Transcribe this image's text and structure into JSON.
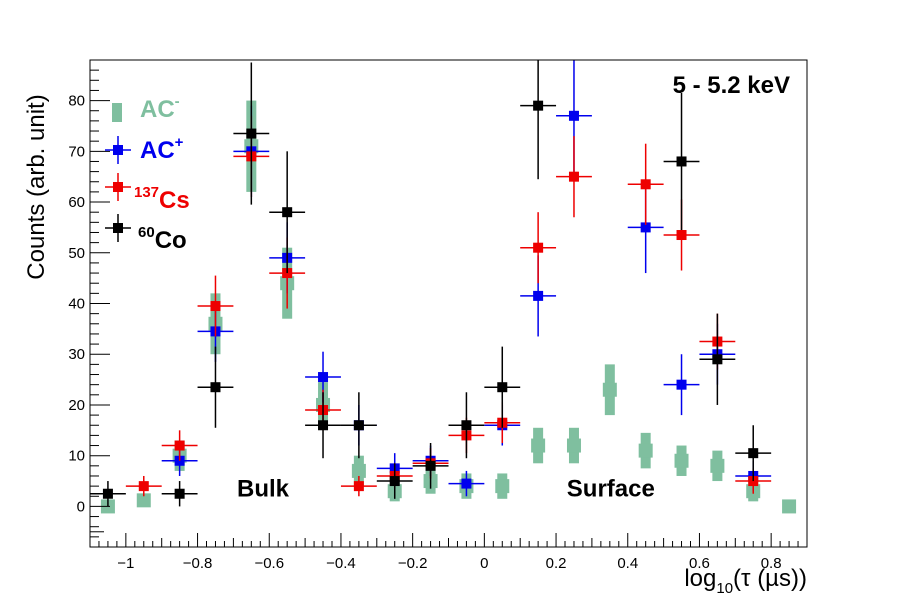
{
  "chart_data": {
    "type": "scatter",
    "title": "5 - 5.2 keV",
    "xlabel": "log10(τ (µs))",
    "xlabel_parts": {
      "main": "log",
      "sub": "10",
      "rest": "(τ (µs))"
    },
    "ylabel": "Counts (arb. unit)",
    "xlim": [
      -1.1,
      0.9
    ],
    "ylim": [
      -8,
      88
    ],
    "xticks": [
      -1,
      -0.8,
      -0.6,
      -0.4,
      -0.2,
      0,
      0.2,
      0.4,
      0.6,
      0.8
    ],
    "xtick_labels": [
      "−1",
      "−0.8",
      "−0.6",
      "−0.4",
      "−0.2",
      "0",
      "0.2",
      "0.4",
      "0.6",
      "0.8"
    ],
    "yticks": [
      0,
      10,
      20,
      30,
      40,
      50,
      60,
      70,
      80
    ],
    "ytick_labels": [
      "0",
      "10",
      "20",
      "30",
      "40",
      "50",
      "60",
      "70",
      "80"
    ],
    "annotations": [
      {
        "text": "Bulk",
        "x": -0.69,
        "y": 2
      },
      {
        "text": "Surface",
        "x": 0.23,
        "y": 2
      }
    ],
    "series": [
      {
        "name": "AC-",
        "legend_main": "AC",
        "legend_sup": "-",
        "color": "#7fbf9f",
        "style": "band",
        "points": [
          {
            "x": -1.05,
            "y": 0,
            "err": 1.2
          },
          {
            "x": -0.95,
            "y": 1.2,
            "err": 1.2
          },
          {
            "x": -0.85,
            "y": 10,
            "err": 3
          },
          {
            "x": -0.75,
            "y": 36,
            "err": 6
          },
          {
            "x": -0.65,
            "y": 71,
            "err": 9
          },
          {
            "x": -0.55,
            "y": 44,
            "err": 7
          },
          {
            "x": -0.45,
            "y": 20,
            "err": 4.5
          },
          {
            "x": -0.35,
            "y": 7,
            "err": 3
          },
          {
            "x": -0.25,
            "y": 3,
            "err": 2
          },
          {
            "x": -0.15,
            "y": 5,
            "err": 2.5
          },
          {
            "x": -0.05,
            "y": 4,
            "err": 2.5
          },
          {
            "x": 0.05,
            "y": 4,
            "err": 2.5
          },
          {
            "x": 0.15,
            "y": 12,
            "err": 3.5
          },
          {
            "x": 0.25,
            "y": 12,
            "err": 3.5
          },
          {
            "x": 0.35,
            "y": 23,
            "err": 5
          },
          {
            "x": 0.45,
            "y": 11,
            "err": 3.5
          },
          {
            "x": 0.55,
            "y": 9,
            "err": 3
          },
          {
            "x": 0.65,
            "y": 8,
            "err": 3
          },
          {
            "x": 0.75,
            "y": 3,
            "err": 2
          },
          {
            "x": 0.85,
            "y": 0,
            "err": 1.2
          }
        ]
      },
      {
        "name": "AC+",
        "legend_main": "AC",
        "legend_sup": "+",
        "color": "#0000ee",
        "style": "cross",
        "points": [
          {
            "x": -0.85,
            "y": 9,
            "err": 3
          },
          {
            "x": -0.75,
            "y": 34.5,
            "err": 6
          },
          {
            "x": -0.65,
            "y": 70,
            "err": 9
          },
          {
            "x": -0.55,
            "y": 49,
            "err": 7
          },
          {
            "x": -0.45,
            "y": 25.5,
            "err": 5
          },
          {
            "x": -0.35,
            "y": 16,
            "err": 4
          },
          {
            "x": -0.25,
            "y": 7.5,
            "err": 3
          },
          {
            "x": -0.15,
            "y": 9,
            "err": 3
          },
          {
            "x": -0.05,
            "y": 4.5,
            "err": 2.5
          },
          {
            "x": 0.05,
            "y": 16,
            "err": 4
          },
          {
            "x": 0.15,
            "y": 41.5,
            "err": 8
          },
          {
            "x": 0.25,
            "y": 77,
            "err": 11
          },
          {
            "x": 0.45,
            "y": 55,
            "err": 9
          },
          {
            "x": 0.55,
            "y": 24,
            "err": 6
          },
          {
            "x": 0.65,
            "y": 30,
            "err": 6
          },
          {
            "x": 0.75,
            "y": 6,
            "err": 3
          }
        ]
      },
      {
        "name": "137Cs",
        "legend_pre": "137",
        "legend_main": "Cs",
        "color": "#ee0000",
        "style": "cross",
        "points": [
          {
            "x": -0.95,
            "y": 4,
            "err": 2
          },
          {
            "x": -0.85,
            "y": 12,
            "err": 3
          },
          {
            "x": -0.75,
            "y": 39.5,
            "err": 6
          },
          {
            "x": -0.65,
            "y": 69,
            "err": 8
          },
          {
            "x": -0.55,
            "y": 46,
            "err": 7
          },
          {
            "x": -0.45,
            "y": 19,
            "err": 4
          },
          {
            "x": -0.35,
            "y": 4,
            "err": 2
          },
          {
            "x": -0.25,
            "y": 6,
            "err": 2.5
          },
          {
            "x": -0.15,
            "y": 8.5,
            "err": 3
          },
          {
            "x": -0.05,
            "y": 14,
            "err": 3.5
          },
          {
            "x": 0.05,
            "y": 16.5,
            "err": 4
          },
          {
            "x": 0.15,
            "y": 51,
            "err": 7
          },
          {
            "x": 0.25,
            "y": 65,
            "err": 8
          },
          {
            "x": 0.45,
            "y": 63.5,
            "err": 8
          },
          {
            "x": 0.55,
            "y": 53.5,
            "err": 7
          },
          {
            "x": 0.65,
            "y": 32.5,
            "err": 5.5
          },
          {
            "x": 0.75,
            "y": 5,
            "err": 2.5
          }
        ]
      },
      {
        "name": "60Co",
        "legend_pre": "60",
        "legend_main": "Co",
        "color": "#000000",
        "style": "cross",
        "points": [
          {
            "x": -1.05,
            "y": 2.5,
            "err": 2.5
          },
          {
            "x": -0.85,
            "y": 2.5,
            "err": 2.5
          },
          {
            "x": -0.75,
            "y": 23.5,
            "err": 8
          },
          {
            "x": -0.65,
            "y": 73.5,
            "err": 14
          },
          {
            "x": -0.55,
            "y": 58,
            "err": 12
          },
          {
            "x": -0.45,
            "y": 16,
            "err": 6.5
          },
          {
            "x": -0.35,
            "y": 16,
            "err": 6.5
          },
          {
            "x": -0.25,
            "y": 5,
            "err": 3.5
          },
          {
            "x": -0.15,
            "y": 8,
            "err": 4.5
          },
          {
            "x": -0.05,
            "y": 16,
            "err": 6.5
          },
          {
            "x": 0.05,
            "y": 23.5,
            "err": 8
          },
          {
            "x": 0.15,
            "y": 79,
            "err": 14.5
          },
          {
            "x": 0.55,
            "y": 68,
            "err": 13.5
          },
          {
            "x": 0.65,
            "y": 29,
            "err": 9
          },
          {
            "x": 0.75,
            "y": 10.5,
            "err": 5.5
          }
        ]
      }
    ]
  }
}
